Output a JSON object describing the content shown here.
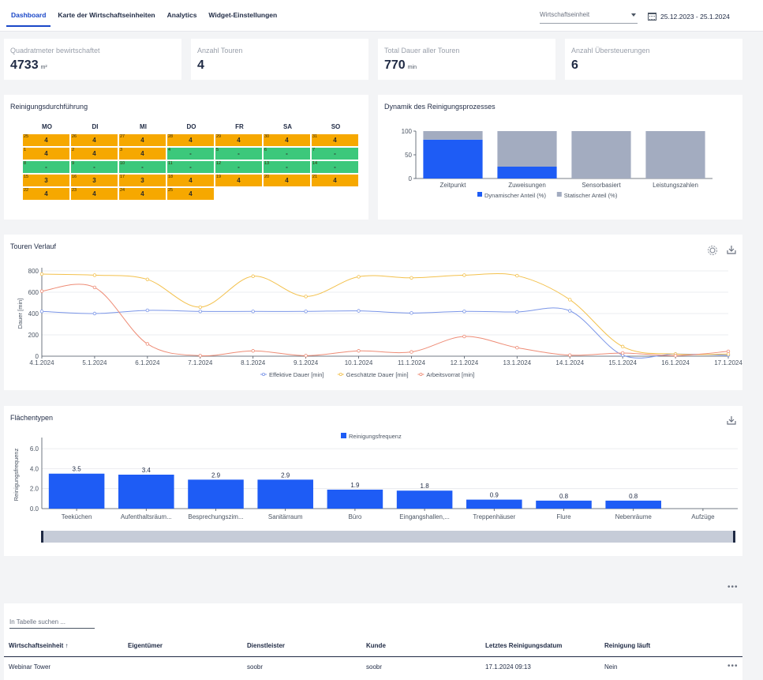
{
  "nav": {
    "tabs": [
      "Dashboard",
      "Karte der Wirtschaftseinheiten",
      "Analytics",
      "Widget-Einstellungen"
    ],
    "wirtschaftseinheit_placeholder": "Wirtschaftseinheit",
    "date_range": "25.12.2023 - 25.1.2024"
  },
  "kpis": [
    {
      "label": "Quadratmeter bewirtschaftet",
      "value": "4733",
      "unit": "m²"
    },
    {
      "label": "Anzahl Touren",
      "value": "4",
      "unit": ""
    },
    {
      "label": "Total Dauer aller Touren",
      "value": "770",
      "unit": "min"
    },
    {
      "label": "Anzahl Übersteuerungen",
      "value": "6",
      "unit": ""
    }
  ],
  "calendar": {
    "title": "Reinigungsdurchführung",
    "days": [
      "MO",
      "DI",
      "MI",
      "DO",
      "FR",
      "SA",
      "SO"
    ],
    "rows": [
      [
        {
          "d": "25",
          "v": "4",
          "c": "orange"
        },
        {
          "d": "26",
          "v": "4",
          "c": "orange"
        },
        {
          "d": "27",
          "v": "4",
          "c": "orange"
        },
        {
          "d": "28",
          "v": "4",
          "c": "orange"
        },
        {
          "d": "29",
          "v": "4",
          "c": "orange"
        },
        {
          "d": "30",
          "v": "4",
          "c": "orange"
        },
        {
          "d": "31",
          "v": "4",
          "c": "orange"
        }
      ],
      [
        {
          "d": "1",
          "v": "4",
          "c": "orange"
        },
        {
          "d": "2",
          "v": "4",
          "c": "orange"
        },
        {
          "d": "3",
          "v": "4",
          "c": "orange"
        },
        {
          "d": "4",
          "v": "-",
          "c": "green"
        },
        {
          "d": "5",
          "v": "-",
          "c": "green"
        },
        {
          "d": "6",
          "v": "-",
          "c": "green"
        },
        {
          "d": "7",
          "v": "-",
          "c": "green"
        }
      ],
      [
        {
          "d": "8",
          "v": "-",
          "c": "green"
        },
        {
          "d": "9",
          "v": "-",
          "c": "green"
        },
        {
          "d": "10",
          "v": "-",
          "c": "green"
        },
        {
          "d": "11",
          "v": "-",
          "c": "green"
        },
        {
          "d": "12",
          "v": "-",
          "c": "green"
        },
        {
          "d": "13",
          "v": "-",
          "c": "green"
        },
        {
          "d": "14",
          "v": "-",
          "c": "green"
        }
      ],
      [
        {
          "d": "15",
          "v": "3",
          "c": "orange"
        },
        {
          "d": "16",
          "v": "3",
          "c": "orange"
        },
        {
          "d": "17",
          "v": "3",
          "c": "orange"
        },
        {
          "d": "18",
          "v": "4",
          "c": "orange"
        },
        {
          "d": "19",
          "v": "4",
          "c": "orange"
        },
        {
          "d": "20",
          "v": "4",
          "c": "orange"
        },
        {
          "d": "21",
          "v": "4",
          "c": "orange"
        }
      ],
      [
        {
          "d": "22",
          "v": "4",
          "c": "orange"
        },
        {
          "d": "23",
          "v": "4",
          "c": "orange"
        },
        {
          "d": "24",
          "v": "4",
          "c": "orange"
        },
        {
          "d": "25",
          "v": "4",
          "c": "orange"
        }
      ]
    ]
  },
  "chart_data": [
    {
      "type": "bar",
      "title": "Dynamik des Reinigungsprozesses",
      "categories": [
        "Zeitpunkt",
        "Zuweisungen",
        "Sensorbasiert",
        "Leistungszahlen"
      ],
      "series": [
        {
          "name": "Dynamischer Anteil (%)",
          "values": [
            82,
            25,
            0,
            0
          ],
          "color": "#1e5cf5"
        },
        {
          "name": "Statischer Anteil (%)",
          "values": [
            18,
            75,
            100,
            100
          ],
          "color": "#a3acc0"
        }
      ],
      "yticks": [
        "0",
        "50",
        "100"
      ],
      "ylim": [
        0,
        100
      ],
      "stacked": true,
      "legend": "bottom"
    },
    {
      "type": "line",
      "title": "Touren Verlauf",
      "ylabel": "Dauer [min]",
      "x": [
        "4.1.2024",
        "5.1.2024",
        "6.1.2024",
        "7.1.2024",
        "8.1.2024",
        "9.1.2024",
        "10.1.2024",
        "11.1.2024",
        "12.1.2024",
        "13.1.2024",
        "14.1.2024",
        "15.1.2024",
        "16.1.2024",
        "17.1.2024"
      ],
      "yticks": [
        "0",
        "200",
        "400",
        "600",
        "800"
      ],
      "ylim": [
        0,
        800
      ],
      "series": [
        {
          "name": "Effektive Dauer [min]",
          "color": "#7b96e8",
          "values": [
            420,
            400,
            430,
            420,
            420,
            420,
            425,
            405,
            420,
            415,
            425,
            10,
            20,
            10
          ]
        },
        {
          "name": "Geschätzte Dauer [min]",
          "color": "#f3c14d",
          "values": [
            770,
            760,
            720,
            460,
            750,
            560,
            745,
            735,
            760,
            755,
            530,
            90,
            20,
            20
          ]
        },
        {
          "name": "Arbeitsvorrat [min]",
          "color": "#ee8c76",
          "values": [
            610,
            645,
            115,
            5,
            50,
            5,
            50,
            40,
            185,
            80,
            10,
            30,
            5,
            45
          ]
        }
      ],
      "grid": true,
      "legend": "bottom"
    },
    {
      "type": "bar",
      "title": "Flächentypen",
      "ylabel": "Reinigungsfrequenz",
      "categories": [
        "Teeküchen",
        "Aufenthaltsräum...",
        "Besprechungszim...",
        "Sanitärraum",
        "Büro",
        "Eingangshallen,...",
        "Treppenhäuser",
        "Flure",
        "Nebenräume",
        "Aufzüge"
      ],
      "series": [
        {
          "name": "Reinigungsfrequenz",
          "values": [
            3.5,
            3.4,
            2.9,
            2.9,
            1.9,
            1.8,
            0.9,
            0.8,
            0.8,
            0
          ],
          "color": "#1e5cf5"
        }
      ],
      "data_labels": [
        "3.5",
        "3.4",
        "2.9",
        "2.9",
        "1.9",
        "1.8",
        "0.9",
        "0.8",
        "0.8",
        ""
      ],
      "yticks": [
        "0.0",
        "2.0",
        "4.0",
        "6.0"
      ],
      "ylim": [
        0,
        6.8
      ],
      "grid": true,
      "legend": "top"
    }
  ],
  "table": {
    "search_placeholder": "In Tabelle suchen ...",
    "columns": [
      "Wirtschaftseinheit ↑",
      "Eigentümer",
      "Dienstleister",
      "Kunde",
      "Letztes Reinigungsdatum",
      "Reinigung läuft"
    ],
    "rows": [
      [
        "Webinar Tower",
        "",
        "soobr",
        "soobr",
        "17.1.2024 09:13",
        "Nein"
      ]
    ]
  },
  "icons": {
    "settings": "gear-icon",
    "download": "download-icon",
    "more": "more-icon"
  },
  "more_label": "•••"
}
